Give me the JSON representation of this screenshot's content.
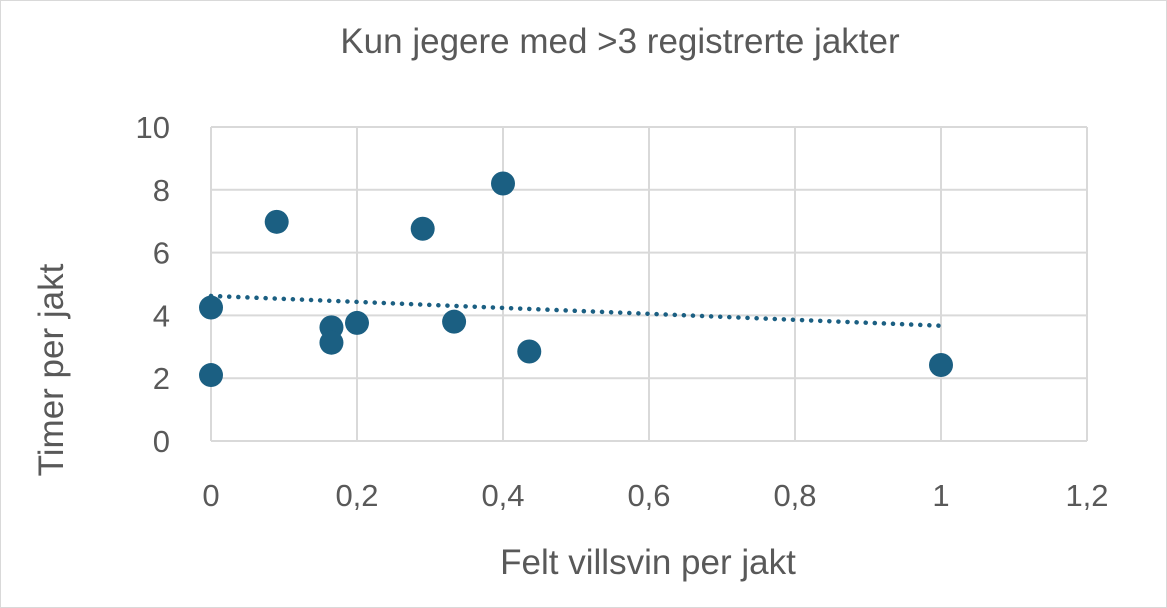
{
  "chart_data": {
    "type": "scatter",
    "title": "Kun jegere med >3 registrerte jakter",
    "xlabel": "Felt villsvin per jakt",
    "ylabel": "Timer per jakt",
    "xlim": [
      0,
      1.2
    ],
    "ylim": [
      0,
      10
    ],
    "x_ticks": [
      0,
      0.2,
      0.4,
      0.6,
      0.8,
      1,
      1.2
    ],
    "x_tick_labels": [
      "0",
      "0,2",
      "0,4",
      "0,6",
      "0,8",
      "1",
      "1,2"
    ],
    "y_ticks": [
      0,
      2,
      4,
      6,
      8,
      10
    ],
    "y_tick_labels": [
      "0",
      "2",
      "4",
      "6",
      "8",
      "10"
    ],
    "grid": true,
    "legend": "none",
    "series": [
      {
        "color": "#1b5f82",
        "points": [
          {
            "x": 0,
            "y": 4.25
          },
          {
            "x": 0,
            "y": 2.1
          },
          {
            "x": 0.09,
            "y": 6.98
          },
          {
            "x": 0.165,
            "y": 3.62
          },
          {
            "x": 0.165,
            "y": 3.13
          },
          {
            "x": 0.2,
            "y": 3.76
          },
          {
            "x": 0.29,
            "y": 6.76
          },
          {
            "x": 0.333,
            "y": 3.8
          },
          {
            "x": 0.4,
            "y": 8.2
          },
          {
            "x": 0.436,
            "y": 2.85
          },
          {
            "x": 1,
            "y": 2.42
          }
        ]
      }
    ],
    "trendline": {
      "type": "linear",
      "style": "dotted",
      "color": "#1b5f82",
      "x": [
        0,
        1
      ],
      "y": [
        4.62,
        3.67
      ]
    }
  }
}
